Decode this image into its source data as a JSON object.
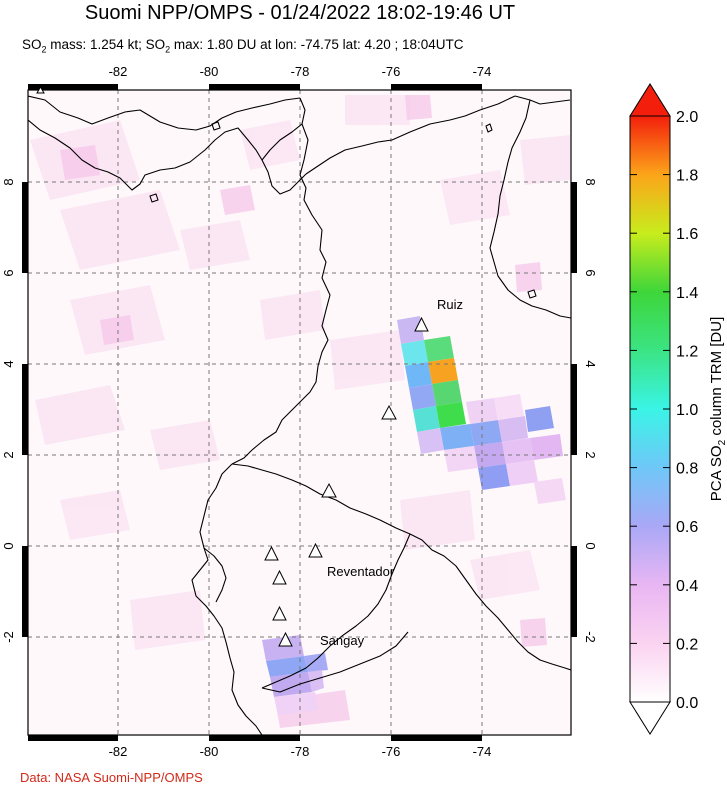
{
  "title": "Suomi NPP/OMPS - 01/24/2022 18:02-19:46 UT",
  "subtitle": {
    "so2_a": "SO",
    "so2_a_sub": "2",
    "mass_text": " mass: 1.254 kt; SO",
    "so2_b_sub": "2",
    "max_text": " max: 1.80 DU at lon: -74.75 lat: 4.20 ; 18:04UTC"
  },
  "credit": "Data: NASA Suomi-NPP/OMPS",
  "map": {
    "lon_ticks": [
      "-82",
      "-80",
      "-78",
      "-76",
      "-74"
    ],
    "lat_ticks_left": [
      "8",
      "6",
      "4",
      "2",
      "0",
      "-2"
    ],
    "lat_ticks_right": [
      "8",
      "6",
      "4",
      "2",
      "0",
      "-2"
    ],
    "volcanoes": [
      "Ruiz",
      "Reventador",
      "Sangay"
    ]
  },
  "colorbar": {
    "ticks": [
      "2.0",
      "1.8",
      "1.6",
      "1.4",
      "1.2",
      "1.0",
      "0.8",
      "0.6",
      "0.4",
      "0.2",
      "0.0"
    ],
    "label_prefix": "PCA SO",
    "label_sub": "2",
    "label_suffix": " column TRM [DU]"
  }
}
